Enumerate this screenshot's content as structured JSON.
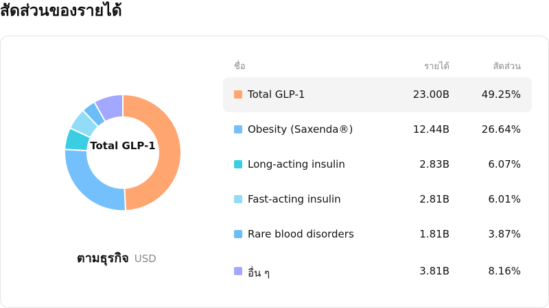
{
  "header": {
    "title": "สัดส่วนของรายได้"
  },
  "donut": {
    "center_label": "Total GLP-1",
    "caption": "ตามธุรกิจ",
    "currency": "USD"
  },
  "table": {
    "columns": {
      "name": "ชื่อ",
      "revenue": "รายได้",
      "share": "สัดส่วน"
    },
    "rows": [
      {
        "name": "Total GLP-1",
        "revenue": "23.00B",
        "share": "49.25%",
        "color": "#FFA570"
      },
      {
        "name": "Obesity (Saxenda®)",
        "revenue": "12.44B",
        "share": "26.64%",
        "color": "#74C0FC"
      },
      {
        "name": "Long-acting insulin",
        "revenue": "2.83B",
        "share": "6.07%",
        "color": "#3BCDE3"
      },
      {
        "name": "Fast-acting insulin",
        "revenue": "2.81B",
        "share": "6.01%",
        "color": "#91DCF7"
      },
      {
        "name": "Rare blood disorders",
        "revenue": "1.81B",
        "share": "3.87%",
        "color": "#6BBDF7"
      },
      {
        "name": "อื่น ๆ",
        "revenue": "3.81B",
        "share": "8.16%",
        "color": "#A3A8FF"
      }
    ]
  },
  "chart_data": {
    "type": "pie",
    "categories": [
      "Total GLP-1",
      "Obesity (Saxenda®)",
      "Long-acting insulin",
      "Fast-acting insulin",
      "Rare blood disorders",
      "อื่น ๆ"
    ],
    "values": [
      49.25,
      26.64,
      6.07,
      6.01,
      3.87,
      8.16
    ],
    "colors": [
      "#FFA570",
      "#74C0FC",
      "#3BCDE3",
      "#91DCF7",
      "#6BBDF7",
      "#A3A8FF"
    ]
  }
}
